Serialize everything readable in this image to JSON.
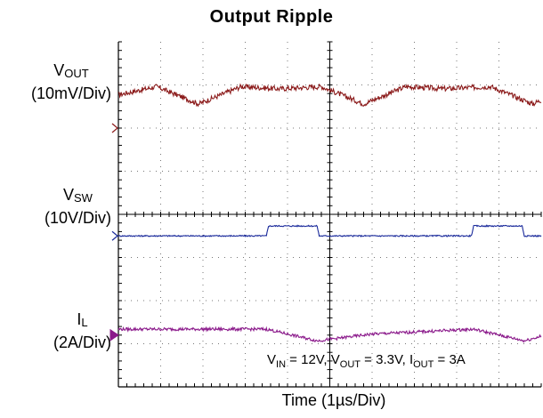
{
  "chart_data": {
    "type": "line",
    "title": "Output Ripple",
    "xlabel": "Time (1µs/Div)",
    "x_divisions": 10,
    "y_divisions": 8,
    "grid": true,
    "channels": [
      {
        "name_main": "V",
        "name_sub": "OUT",
        "scale": "(10mV/Div)",
        "color": "#8b1a1a",
        "waveform": "triangular ripple, ~15mV peak-to-peak, period ~4.9 div",
        "points": [
          [
            0,
            2.2
          ],
          [
            0.9,
            2.75
          ],
          [
            1.9,
            1.6
          ],
          [
            2.9,
            2.75
          ],
          [
            3.8,
            2.6
          ],
          [
            4.8,
            2.75
          ],
          [
            5.8,
            1.6
          ],
          [
            6.8,
            2.75
          ],
          [
            7.7,
            2.6
          ],
          [
            8.8,
            2.75
          ],
          [
            9.8,
            1.6
          ],
          [
            10,
            1.85
          ]
        ]
      },
      {
        "name_main": "V",
        "name_sub": "SW",
        "scale": "(10V/Div)",
        "color": "#1a2a9b",
        "waveform": "square pulse 0V to ~11V, period ~4.9 div",
        "points": [
          [
            0,
            0
          ],
          [
            3.5,
            0
          ],
          [
            3.55,
            2.3
          ],
          [
            4.7,
            2.3
          ],
          [
            4.75,
            0
          ],
          [
            8.35,
            0
          ],
          [
            8.4,
            2.3
          ],
          [
            9.55,
            2.3
          ],
          [
            9.6,
            0
          ],
          [
            10,
            0
          ]
        ]
      },
      {
        "name_main": "I",
        "name_sub": "L",
        "scale": "(2A/Div)",
        "color": "#8b1a8b",
        "waveform": "triangular inductor current ripple, ~0.6A peak-to-peak",
        "points": [
          [
            0,
            1.15
          ],
          [
            3.5,
            1.15
          ],
          [
            4.7,
            -1.1
          ],
          [
            6,
            0.2
          ],
          [
            8.4,
            1.15
          ],
          [
            9.6,
            -1.1
          ],
          [
            10,
            -0.2
          ]
        ]
      }
    ],
    "annotation": "VIN = 12V, VOUT = 3.3V, IOUT = 3A"
  },
  "labels": {
    "ch1_main": "V",
    "ch1_sub": "OUT",
    "ch1_scale": "(10mV/Div)",
    "ch2_main": "V",
    "ch2_sub": "SW",
    "ch2_scale": "(10V/Div)",
    "ch3_main": "I",
    "ch3_sub": "L",
    "ch3_scale": "(2A/Div)"
  },
  "conditions": {
    "vin_main": "V",
    "vin_sub": "IN",
    "vin_val": " = 12V, ",
    "vout_main": "V",
    "vout_sub": "OUT",
    "vout_val": " = 3.3V, ",
    "iout_main": "I",
    "iout_sub": "OUT",
    "iout_val": " = 3A"
  }
}
